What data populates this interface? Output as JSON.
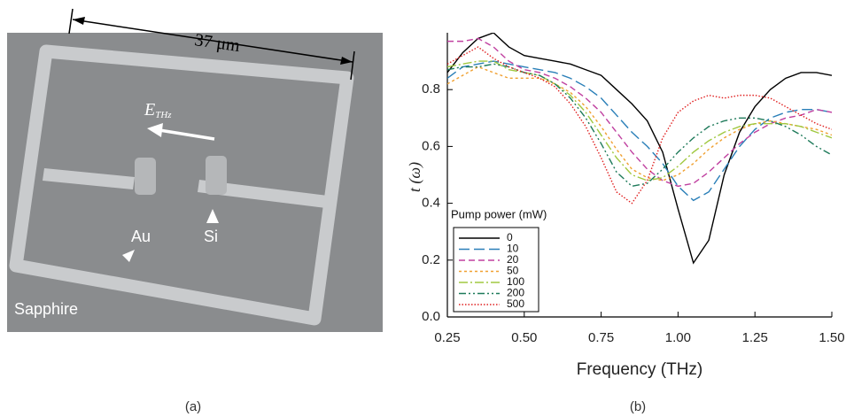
{
  "image_panel": {
    "scale_label": "37 μm",
    "field_label": "E",
    "field_subscript": "THz",
    "metal_label": "Au",
    "semiconductor_label": "Si",
    "substrate_label": "Sapphire",
    "caption": "(a)"
  },
  "chart_data": {
    "type": "line",
    "caption": "(b)",
    "xlabel": "Frequency (THz)",
    "ylabel": "t (ω)",
    "legend_title": "Pump power (mW)",
    "legend": "lower-left",
    "x": [
      0.25,
      0.3,
      0.35,
      0.4,
      0.45,
      0.5,
      0.55,
      0.6,
      0.65,
      0.7,
      0.75,
      0.8,
      0.85,
      0.9,
      0.95,
      1.0,
      1.05,
      1.1,
      1.15,
      1.2,
      1.25,
      1.3,
      1.35,
      1.4,
      1.45,
      1.5
    ],
    "xlim": [
      0.25,
      1.5
    ],
    "xticks": [
      0.25,
      {
        "value": 0.5,
        "label": "0.50"
      },
      0.75,
      {
        "value": 1.0,
        "label": "1.00"
      },
      1.25,
      {
        "value": 1.5,
        "label": "1.50"
      }
    ],
    "ylim": [
      0,
      1.0
    ],
    "yticks": [
      {
        "value": 0,
        "label": "0.0"
      },
      0.2,
      0.4,
      0.6,
      0.8
    ],
    "series": [
      {
        "name": "0",
        "color": "#000000",
        "dash": "none",
        "values": [
          0.86,
          0.93,
          0.98,
          1.0,
          0.95,
          0.92,
          0.91,
          0.9,
          0.89,
          0.87,
          0.85,
          0.8,
          0.75,
          0.69,
          0.58,
          0.38,
          0.19,
          0.27,
          0.5,
          0.65,
          0.74,
          0.8,
          0.84,
          0.86,
          0.86,
          0.85
        ]
      },
      {
        "name": "10",
        "color": "#2a7fb8",
        "dash": "12,5",
        "values": [
          0.84,
          0.88,
          0.89,
          0.9,
          0.89,
          0.88,
          0.87,
          0.86,
          0.84,
          0.81,
          0.77,
          0.71,
          0.65,
          0.6,
          0.54,
          0.46,
          0.41,
          0.44,
          0.52,
          0.6,
          0.66,
          0.7,
          0.72,
          0.73,
          0.73,
          0.72
        ]
      },
      {
        "name": "20",
        "color": "#c040a0",
        "dash": "7,4",
        "values": [
          0.97,
          0.97,
          0.98,
          0.95,
          0.9,
          0.87,
          0.86,
          0.84,
          0.81,
          0.77,
          0.72,
          0.65,
          0.58,
          0.52,
          0.48,
          0.46,
          0.47,
          0.51,
          0.56,
          0.61,
          0.65,
          0.68,
          0.7,
          0.71,
          0.73,
          0.72
        ]
      },
      {
        "name": "50",
        "color": "#f0a030",
        "dash": "3,3",
        "values": [
          0.82,
          0.85,
          0.88,
          0.86,
          0.84,
          0.84,
          0.84,
          0.82,
          0.79,
          0.74,
          0.67,
          0.59,
          0.52,
          0.49,
          0.48,
          0.5,
          0.54,
          0.59,
          0.63,
          0.66,
          0.68,
          0.69,
          0.68,
          0.67,
          0.66,
          0.64
        ]
      },
      {
        "name": "100",
        "color": "#a0c840",
        "dash": "10,3,2,3",
        "values": [
          0.88,
          0.89,
          0.9,
          0.9,
          0.87,
          0.86,
          0.85,
          0.82,
          0.78,
          0.72,
          0.64,
          0.56,
          0.5,
          0.48,
          0.49,
          0.53,
          0.58,
          0.62,
          0.65,
          0.67,
          0.68,
          0.68,
          0.68,
          0.67,
          0.65,
          0.63
        ]
      },
      {
        "name": "200",
        "color": "#1e7a5a",
        "dash": "8,3,2,3,2,3",
        "values": [
          0.87,
          0.88,
          0.88,
          0.89,
          0.88,
          0.86,
          0.85,
          0.82,
          0.77,
          0.7,
          0.61,
          0.51,
          0.46,
          0.47,
          0.52,
          0.58,
          0.63,
          0.67,
          0.69,
          0.7,
          0.7,
          0.69,
          0.67,
          0.64,
          0.6,
          0.57
        ]
      },
      {
        "name": "500",
        "color": "#e02020",
        "dash": "1.5,2",
        "values": [
          0.89,
          0.92,
          0.95,
          0.91,
          0.88,
          0.86,
          0.84,
          0.81,
          0.75,
          0.67,
          0.56,
          0.44,
          0.4,
          0.48,
          0.63,
          0.72,
          0.76,
          0.78,
          0.77,
          0.78,
          0.78,
          0.77,
          0.74,
          0.71,
          0.68,
          0.66
        ]
      }
    ]
  }
}
